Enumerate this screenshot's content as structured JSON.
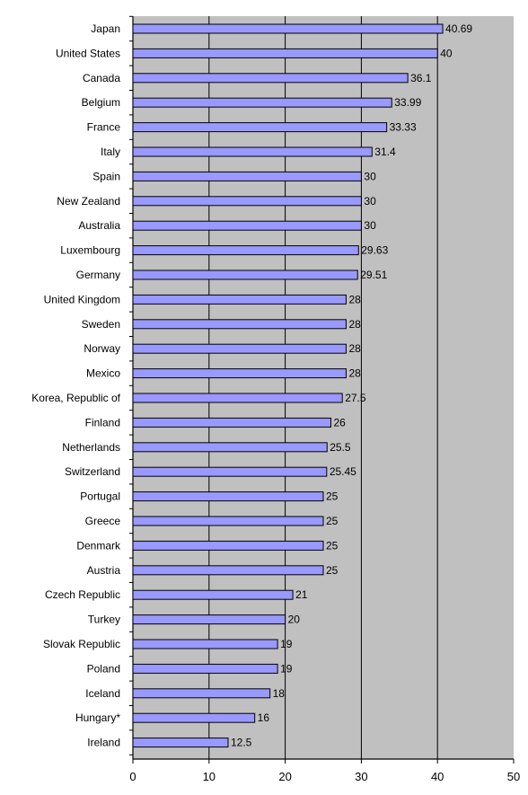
{
  "chart_data": {
    "type": "bar",
    "orientation": "horizontal",
    "categories": [
      "Japan",
      "United States",
      "Canada",
      "Belgium",
      "France",
      "Italy",
      "Spain",
      "New Zealand",
      "Australia",
      "Luxembourg",
      "Germany",
      "United Kingdom",
      "Sweden",
      "Norway",
      "Mexico",
      "Korea, Republic of",
      "Finland",
      "Netherlands",
      "Switzerland",
      "Portugal",
      "Greece",
      "Denmark",
      "Austria",
      "Czech Republic",
      "Turkey",
      "Slovak Republic",
      "Poland",
      "Iceland",
      "Hungary*",
      "Ireland"
    ],
    "values": [
      40.69,
      40,
      36.1,
      33.99,
      33.33,
      31.4,
      30,
      30,
      30,
      29.63,
      29.51,
      28,
      28,
      28,
      28,
      27.5,
      26,
      25.5,
      25.45,
      25,
      25,
      25,
      25,
      21,
      20,
      19,
      19,
      18,
      16,
      12.5
    ],
    "value_labels": [
      "40.69",
      "40",
      "36.1",
      "33.99",
      "33.33",
      "31.4",
      "30",
      "30",
      "30",
      "29.63",
      "29.51",
      "28",
      "28",
      "28",
      "28",
      "27.5",
      "26",
      "25.5",
      "25.45",
      "25",
      "25",
      "25",
      "25",
      "21",
      "20",
      "19",
      "19",
      "18",
      "16",
      "12.5"
    ],
    "x_ticks": [
      "0",
      "10",
      "20",
      "30",
      "40",
      "50"
    ],
    "xlim": [
      0,
      50
    ],
    "grid": "vertical",
    "legend": "none",
    "title": "",
    "xlabel": "",
    "ylabel": ""
  },
  "colors": {
    "plot_background": "#c0c0c0",
    "bar_fill": "#9999ff",
    "bar_stroke": "#000000",
    "gridline": "#000000",
    "text": "#000000"
  }
}
